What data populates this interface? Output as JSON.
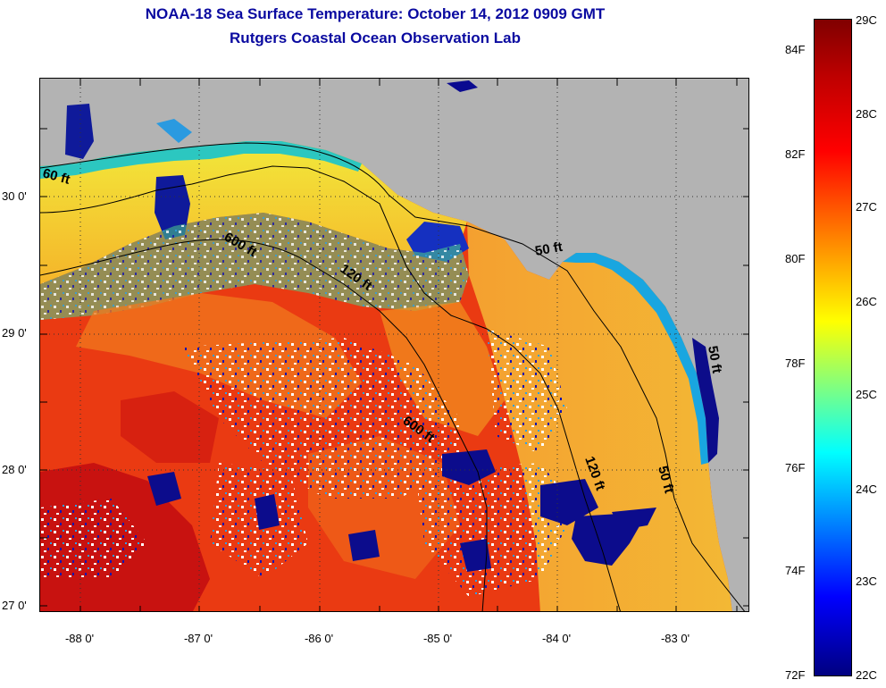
{
  "title": {
    "line1": "NOAA-18 Sea Surface Temperature:  October 14, 2012 0909 GMT",
    "line2": "Rutgers Coastal Ocean Observation Lab"
  },
  "map": {
    "latitude_labels": [
      "30 0'",
      "29 0'",
      "28 0'",
      "27 0'"
    ],
    "longitude_labels": [
      "-88 0'",
      "-87 0'",
      "-86 0'",
      "-85 0'",
      "-84 0'",
      "-83 0'"
    ],
    "contour_labels": [
      "60 ft",
      "600 ft",
      "120 ft",
      "50 ft",
      "600 ft",
      "120 ft",
      "50 ft",
      "50 ft"
    ],
    "colors": {
      "land": "#b3b3b3",
      "cloud_mask": "#ffffff",
      "warm": "#e8260f",
      "cool": "#1010a0"
    }
  },
  "colorbar": {
    "fahrenheit_labels": [
      "84F",
      "82F",
      "80F",
      "78F",
      "76F",
      "74F",
      "72F"
    ],
    "celsius_labels": [
      "29C",
      "28C",
      "27C",
      "26C",
      "25C",
      "24C",
      "23C",
      "22C"
    ],
    "range_celsius": [
      22,
      29
    ],
    "range_fahrenheit": [
      72,
      84
    ],
    "colormap": "jet"
  }
}
